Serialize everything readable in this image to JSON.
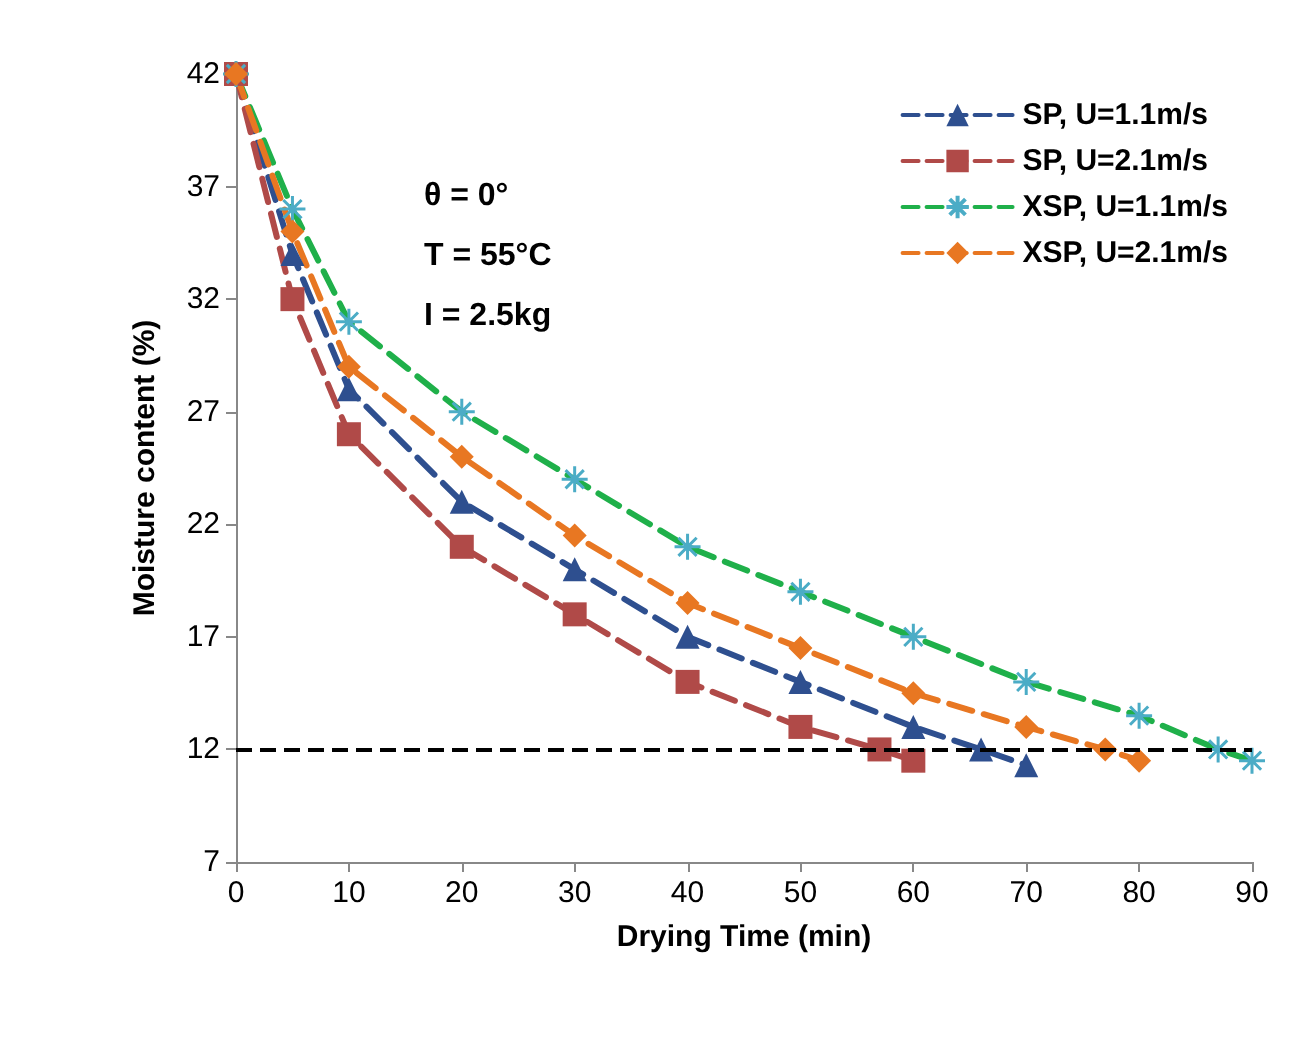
{
  "chart_data": {
    "type": "line",
    "xlabel": "Drying Time (min)",
    "ylabel": "Moisture content (%)",
    "xlim": [
      0,
      90
    ],
    "xticks": [
      0,
      10,
      20,
      30,
      40,
      50,
      60,
      70,
      80,
      90
    ],
    "ylim": [
      7,
      42
    ],
    "yticks": [
      7,
      12,
      17,
      22,
      27,
      32,
      37,
      42
    ],
    "grid": false,
    "legend": "top right",
    "line_style": "dashed",
    "series": [
      {
        "name": "SP, U=1.1m/s",
        "color": "#2e4f8f",
        "marker": "triangle",
        "x": [
          0,
          5,
          10,
          20,
          30,
          40,
          50,
          60,
          66,
          70
        ],
        "values": [
          42,
          34,
          28,
          23,
          20,
          17,
          15,
          13,
          12,
          11.3
        ]
      },
      {
        "name": "SP, U=2.1m/s",
        "color": "#b04a48",
        "marker": "square",
        "x": [
          0,
          5,
          10,
          20,
          30,
          40,
          50,
          57,
          60
        ],
        "values": [
          42,
          32,
          26,
          21,
          18,
          15,
          13,
          12,
          11.5
        ]
      },
      {
        "name": "XSP, U=1.1m/s",
        "color": "#1fb04a",
        "marker": "cross",
        "x": [
          0,
          5,
          10,
          20,
          30,
          40,
          50,
          60,
          70,
          80,
          87,
          90
        ],
        "values": [
          42,
          36,
          31,
          27,
          24,
          21,
          19,
          17,
          15,
          13.5,
          12,
          11.5
        ]
      },
      {
        "name": "XSP, U=2.1m/s",
        "color": "#e87722",
        "marker": "diamond",
        "x": [
          0,
          5,
          10,
          20,
          30,
          40,
          50,
          60,
          70,
          77,
          80
        ],
        "values": [
          42,
          35,
          29,
          25,
          21.5,
          18.5,
          16.5,
          14.5,
          13,
          12,
          11.5
        ]
      }
    ],
    "ref_lines": [
      {
        "axis": "y",
        "value": 12,
        "color": "#000000",
        "line_style": "dashed"
      }
    ],
    "annotations": [
      "θ = 0°",
      "T = 55°C",
      "I = 2.5kg"
    ]
  }
}
